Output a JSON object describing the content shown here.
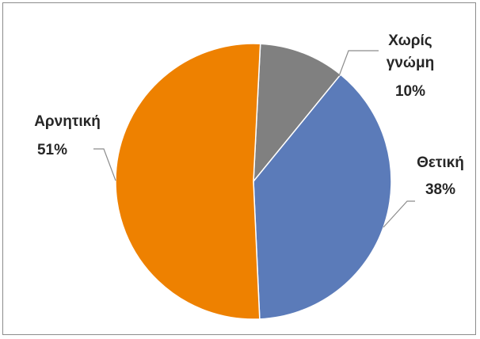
{
  "chart_data": {
    "type": "pie",
    "title": "",
    "slices": [
      {
        "name": "Χωρίς γνώμη",
        "label_lines": [
          "Χωρίς",
          "γνώμη"
        ],
        "percent_label": "10%",
        "value": 10,
        "color": "#808080"
      },
      {
        "name": "Θετική",
        "label_lines": [
          "Θετική"
        ],
        "percent_label": "38%",
        "value": 38,
        "color": "#5b7bb9"
      },
      {
        "name": "Αρνητική",
        "label_lines": [
          "Αρνητική"
        ],
        "percent_label": "51%",
        "value": 51,
        "color": "#ee8100"
      }
    ],
    "legend": "none",
    "data_labels": "category name and percentage, outside with leader lines"
  }
}
